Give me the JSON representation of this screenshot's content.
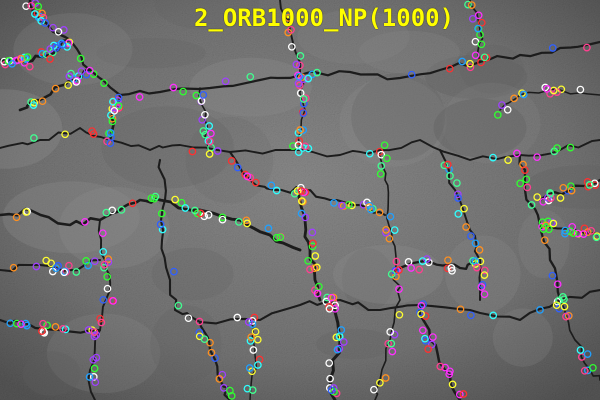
{
  "overlay_title": {
    "text": "2_ORB1000_NP(1000)"
  },
  "colors": {
    "title": "#ffff00",
    "ground_base": "#777777",
    "ground_dark": "#4e4e4e",
    "crack": "#1c1c1c",
    "keypoints": [
      "#ff3030",
      "#30ff30",
      "#3060ff",
      "#ff30ff",
      "#30ffff",
      "#ffff30",
      "#ff9020",
      "#a040ff",
      "#40ff90",
      "#ff4090",
      "#ffffff",
      "#20a0ff"
    ]
  },
  "image": {
    "subject": "dry-cracked-mud-ground",
    "keypoint-marker": "circle",
    "keypoint-count": 1000
  }
}
